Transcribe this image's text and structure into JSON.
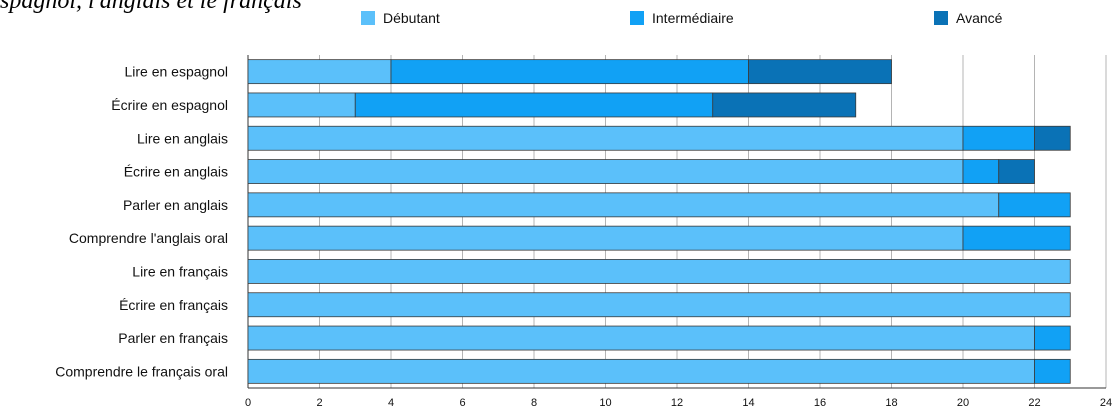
{
  "partial_title": "spagnol, l'anglais et le français",
  "colors": {
    "debutant": "#5bc0fa",
    "intermediaire": "#11a1f5",
    "avance": "#0a72b6",
    "grid": "#b4b4b4",
    "axis": "#333333"
  },
  "chart_data": {
    "type": "bar",
    "orientation": "horizontal",
    "stacked": true,
    "categories": [
      "Lire en espagnol",
      "Écrire en espagnol",
      "Lire en anglais",
      "Écrire en anglais",
      "Parler en anglais",
      "Comprendre l'anglais oral",
      "Lire en français",
      "Écrire en français",
      "Parler en français",
      "Comprendre le français oral"
    ],
    "series": [
      {
        "name": "Débutant",
        "color": "#5bc0fa",
        "values": [
          4,
          3,
          20,
          20,
          21,
          20,
          23,
          23,
          22,
          22
        ]
      },
      {
        "name": "Intermédiaire",
        "color": "#11a1f5",
        "values": [
          10,
          10,
          2,
          1,
          2,
          3,
          0,
          0,
          1,
          1
        ]
      },
      {
        "name": "Avancé",
        "color": "#0a72b6",
        "values": [
          4,
          4,
          1,
          1,
          0,
          0,
          0,
          0,
          0,
          0
        ]
      }
    ],
    "xticks": [
      "0",
      "2",
      "4",
      "6",
      "8",
      "10",
      "12",
      "14",
      "16",
      "18",
      "20",
      "22",
      "24"
    ],
    "xlim": [
      0,
      24
    ],
    "grid": true,
    "legend_position": "top"
  }
}
